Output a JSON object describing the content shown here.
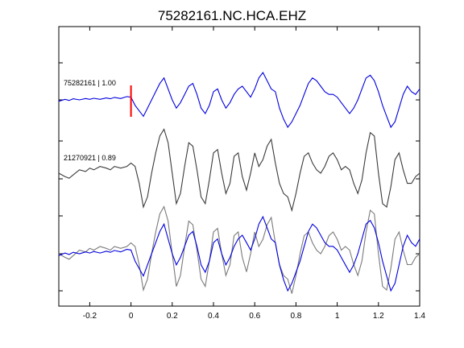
{
  "chart_data": {
    "type": "line",
    "title": "75282161.NC.HCA.EHZ",
    "xlabel": "",
    "ylabel": "",
    "xlim": [
      -0.35,
      1.4
    ],
    "xticks": [
      -0.2,
      0,
      0.2,
      0.4,
      0.6,
      0.8,
      1,
      1.2,
      1.4
    ],
    "xtick_labels": [
      "-0.2",
      "0",
      "0.2",
      "0.4",
      "0.6",
      "0.8",
      "1",
      "1.2",
      "1.4"
    ],
    "grid": false,
    "pick_time": 0,
    "colors": {
      "primary": "#0000e0",
      "secondary": "#3a3a3a",
      "overlay_secondary": "#7a7a7a",
      "pick": "#ff0000"
    },
    "traces": [
      {
        "name": "75282161",
        "label": "75282161 | 1.00",
        "color": "#0000e0",
        "x": [
          -0.35,
          -0.32,
          -0.3,
          -0.28,
          -0.25,
          -0.22,
          -0.2,
          -0.18,
          -0.15,
          -0.12,
          -0.1,
          -0.08,
          -0.05,
          -0.02,
          0,
          0.02,
          0.04,
          0.06,
          0.08,
          0.1,
          0.12,
          0.14,
          0.16,
          0.18,
          0.2,
          0.22,
          0.24,
          0.26,
          0.28,
          0.3,
          0.32,
          0.34,
          0.36,
          0.38,
          0.4,
          0.42,
          0.44,
          0.46,
          0.48,
          0.5,
          0.52,
          0.54,
          0.56,
          0.58,
          0.6,
          0.62,
          0.64,
          0.66,
          0.68,
          0.7,
          0.72,
          0.74,
          0.76,
          0.78,
          0.8,
          0.82,
          0.84,
          0.86,
          0.88,
          0.9,
          0.92,
          0.94,
          0.96,
          0.98,
          1.0,
          1.02,
          1.04,
          1.06,
          1.08,
          1.1,
          1.12,
          1.14,
          1.16,
          1.18,
          1.2,
          1.22,
          1.24,
          1.26,
          1.28,
          1.3,
          1.32,
          1.34,
          1.36,
          1.38,
          1.4
        ],
        "y": [
          -0.05,
          0.02,
          -0.02,
          0.04,
          0.0,
          0.05,
          0.02,
          0.06,
          0.02,
          0.07,
          0.04,
          0.09,
          0.05,
          0.12,
          0.1,
          -0.2,
          -0.4,
          -0.6,
          -0.3,
          0.0,
          0.3,
          0.6,
          0.8,
          0.4,
          0.0,
          -0.3,
          -0.1,
          0.2,
          0.5,
          0.6,
          0.2,
          -0.3,
          -0.5,
          -0.2,
          0.3,
          0.4,
          0.0,
          -0.3,
          -0.1,
          0.2,
          0.4,
          0.5,
          0.3,
          0.1,
          0.4,
          0.8,
          1.0,
          0.7,
          0.4,
          0.3,
          -0.3,
          -0.7,
          -1.0,
          -0.8,
          -0.5,
          -0.2,
          0.2,
          0.6,
          0.8,
          0.7,
          0.5,
          0.3,
          0.2,
          0.2,
          0.1,
          -0.1,
          -0.3,
          -0.5,
          -0.3,
          0.0,
          0.4,
          0.8,
          0.9,
          0.7,
          0.3,
          -0.2,
          -0.6,
          -1.0,
          -0.8,
          -0.3,
          0.2,
          0.5,
          0.3,
          0.2,
          0.4
        ]
      },
      {
        "name": "21270921",
        "label": "21270921 | 0.89",
        "color": "#3a3a3a",
        "x": [
          -0.35,
          -0.32,
          -0.3,
          -0.28,
          -0.25,
          -0.22,
          -0.2,
          -0.18,
          -0.15,
          -0.12,
          -0.1,
          -0.08,
          -0.05,
          -0.02,
          0,
          0.02,
          0.04,
          0.06,
          0.08,
          0.1,
          0.12,
          0.14,
          0.16,
          0.18,
          0.2,
          0.22,
          0.24,
          0.26,
          0.28,
          0.3,
          0.32,
          0.34,
          0.36,
          0.38,
          0.4,
          0.42,
          0.44,
          0.46,
          0.48,
          0.5,
          0.52,
          0.54,
          0.56,
          0.58,
          0.6,
          0.62,
          0.64,
          0.66,
          0.68,
          0.7,
          0.72,
          0.74,
          0.76,
          0.78,
          0.8,
          0.82,
          0.84,
          0.86,
          0.88,
          0.9,
          0.92,
          0.94,
          0.96,
          0.98,
          1.0,
          1.02,
          1.04,
          1.06,
          1.08,
          1.1,
          1.12,
          1.14,
          1.16,
          1.18,
          1.2,
          1.22,
          1.24,
          1.26,
          1.28,
          1.3,
          1.32,
          1.34,
          1.36,
          1.38,
          1.4
        ],
        "y": [
          0.0,
          -0.1,
          -0.15,
          -0.05,
          0.1,
          0.05,
          0.15,
          0.1,
          0.2,
          0.15,
          0.1,
          0.2,
          0.15,
          0.2,
          0.3,
          0.2,
          -0.3,
          -1.0,
          -0.7,
          0.0,
          0.6,
          1.1,
          1.3,
          0.9,
          0.0,
          -0.9,
          -0.6,
          0.2,
          0.9,
          0.8,
          0.1,
          -0.7,
          -0.9,
          -0.2,
          0.6,
          0.7,
          0.0,
          -0.6,
          -0.3,
          0.5,
          0.6,
          -0.1,
          -0.5,
          0.0,
          0.6,
          0.2,
          0.4,
          0.8,
          1.0,
          0.3,
          -0.3,
          -0.6,
          -0.7,
          -1.1,
          -0.6,
          0.0,
          0.5,
          0.6,
          0.3,
          0.1,
          0.0,
          0.2,
          0.5,
          0.6,
          0.4,
          0.1,
          0.2,
          0.1,
          -0.3,
          -0.6,
          -0.2,
          0.6,
          1.2,
          1.1,
          0.0,
          -0.9,
          -1.0,
          -0.4,
          0.4,
          0.6,
          0.1,
          -0.3,
          -0.3,
          -0.1,
          0.0
        ]
      }
    ],
    "overlay": {
      "description_visible": false
    }
  }
}
